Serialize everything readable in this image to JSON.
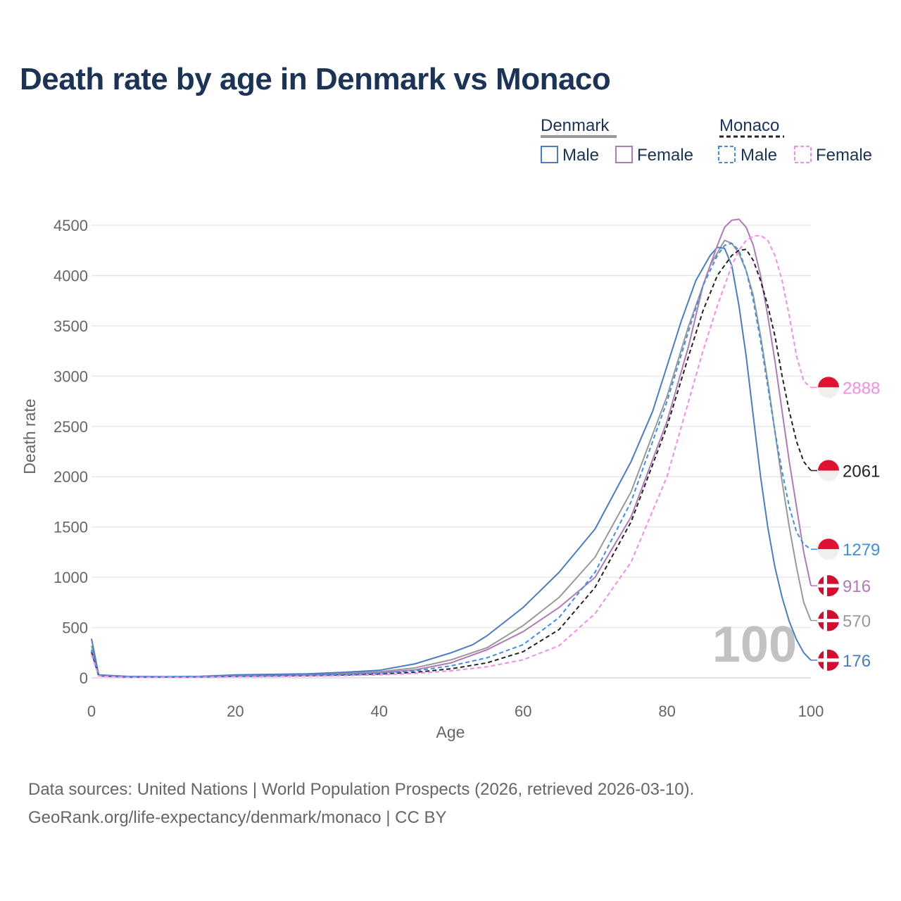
{
  "title": "Death rate by age in Denmark vs Monaco",
  "legend": {
    "groups": [
      {
        "name": "Denmark",
        "sample_color": "#999999",
        "sample_dash": "solid",
        "entries": [
          {
            "label": "Male",
            "color": "#4a7cc4",
            "dash": "solid"
          },
          {
            "label": "Female",
            "color": "#b07ab8",
            "dash": "solid"
          }
        ]
      },
      {
        "name": "Monaco",
        "sample_color": "#222222",
        "sample_dash": "dashed",
        "entries": [
          {
            "label": "Male",
            "color": "#3d8fe6",
            "dash": "dashed"
          },
          {
            "label": "Female",
            "color": "#f58be8",
            "dash": "dashed"
          }
        ]
      }
    ]
  },
  "age_watermark": "100",
  "source": {
    "line1": "Data sources: United Nations | World Population Prospects (2026, retrieved 2026-03-10).",
    "line2": "GeoRank.org/life-expectancy/denmark/monaco | CC BY"
  },
  "chart_data": {
    "type": "line",
    "title": "Death rate by age in Denmark vs Monaco",
    "xlabel": "Age",
    "ylabel": "Death rate",
    "xlim": [
      0,
      100
    ],
    "ylim": [
      0,
      4500
    ],
    "x_ticks": [
      0,
      20,
      40,
      60,
      80,
      100
    ],
    "y_ticks": [
      0,
      500,
      1000,
      1500,
      2000,
      2500,
      3000,
      3500,
      4000,
      4500
    ],
    "grid": true,
    "series": [
      {
        "name": "Denmark Total",
        "country": "Denmark",
        "color": "#999999",
        "dash": "solid",
        "end_label": "570",
        "end_value": 570,
        "flag": "denmark",
        "points": [
          [
            0,
            320
          ],
          [
            1,
            25
          ],
          [
            5,
            12
          ],
          [
            10,
            10
          ],
          [
            15,
            12
          ],
          [
            20,
            25
          ],
          [
            25,
            30
          ],
          [
            30,
            35
          ],
          [
            35,
            45
          ],
          [
            40,
            60
          ],
          [
            45,
            100
          ],
          [
            50,
            180
          ],
          [
            55,
            300
          ],
          [
            60,
            520
          ],
          [
            65,
            800
          ],
          [
            70,
            1200
          ],
          [
            75,
            1850
          ],
          [
            80,
            2800
          ],
          [
            83,
            3500
          ],
          [
            86,
            4100
          ],
          [
            88,
            4350
          ],
          [
            89,
            4320
          ],
          [
            90,
            4220
          ],
          [
            91,
            4050
          ],
          [
            92,
            3800
          ],
          [
            93,
            3400
          ],
          [
            94,
            2950
          ],
          [
            95,
            2450
          ],
          [
            96,
            1950
          ],
          [
            97,
            1500
          ],
          [
            98,
            1100
          ],
          [
            99,
            750
          ],
          [
            100,
            570
          ]
        ]
      },
      {
        "name": "Denmark Male",
        "country": "Denmark",
        "color": "#4a7cc4",
        "dash": "solid",
        "end_label": "176",
        "end_value": 176,
        "flag": "denmark",
        "points": [
          [
            0,
            390
          ],
          [
            1,
            30
          ],
          [
            5,
            15
          ],
          [
            10,
            12
          ],
          [
            15,
            15
          ],
          [
            20,
            30
          ],
          [
            25,
            35
          ],
          [
            30,
            40
          ],
          [
            35,
            55
          ],
          [
            40,
            75
          ],
          [
            45,
            140
          ],
          [
            50,
            250
          ],
          [
            53,
            330
          ],
          [
            55,
            420
          ],
          [
            60,
            700
          ],
          [
            65,
            1050
          ],
          [
            70,
            1480
          ],
          [
            75,
            2150
          ],
          [
            78,
            2650
          ],
          [
            80,
            3100
          ],
          [
            82,
            3550
          ],
          [
            84,
            3950
          ],
          [
            86,
            4200
          ],
          [
            87,
            4280
          ],
          [
            88,
            4270
          ],
          [
            89,
            4100
          ],
          [
            90,
            3700
          ],
          [
            91,
            3200
          ],
          [
            92,
            2600
          ],
          [
            93,
            2000
          ],
          [
            94,
            1500
          ],
          [
            95,
            1100
          ],
          [
            96,
            800
          ],
          [
            97,
            560
          ],
          [
            98,
            380
          ],
          [
            99,
            250
          ],
          [
            100,
            176
          ]
        ]
      },
      {
        "name": "Denmark Female",
        "country": "Denmark",
        "color": "#b07ab8",
        "dash": "solid",
        "end_label": "916",
        "end_value": 916,
        "flag": "denmark",
        "points": [
          [
            0,
            250
          ],
          [
            1,
            20
          ],
          [
            5,
            10
          ],
          [
            10,
            8
          ],
          [
            15,
            10
          ],
          [
            20,
            18
          ],
          [
            25,
            22
          ],
          [
            30,
            28
          ],
          [
            35,
            35
          ],
          [
            40,
            50
          ],
          [
            45,
            80
          ],
          [
            50,
            150
          ],
          [
            55,
            280
          ],
          [
            60,
            460
          ],
          [
            65,
            700
          ],
          [
            70,
            1000
          ],
          [
            75,
            1600
          ],
          [
            80,
            2550
          ],
          [
            83,
            3300
          ],
          [
            85,
            3900
          ],
          [
            87,
            4300
          ],
          [
            88,
            4480
          ],
          [
            89,
            4550
          ],
          [
            90,
            4560
          ],
          [
            91,
            4480
          ],
          [
            92,
            4300
          ],
          [
            93,
            4000
          ],
          [
            94,
            3600
          ],
          [
            95,
            3150
          ],
          [
            96,
            2650
          ],
          [
            97,
            2150
          ],
          [
            98,
            1700
          ],
          [
            99,
            1250
          ],
          [
            100,
            916
          ]
        ]
      },
      {
        "name": "Monaco Total",
        "country": "Monaco",
        "color": "#222222",
        "dash": "dashed",
        "end_label": "2061",
        "end_value": 2061,
        "flag": "monaco",
        "points": [
          [
            0,
            260
          ],
          [
            1,
            20
          ],
          [
            5,
            8
          ],
          [
            10,
            8
          ],
          [
            15,
            10
          ],
          [
            20,
            15
          ],
          [
            25,
            18
          ],
          [
            30,
            22
          ],
          [
            35,
            28
          ],
          [
            40,
            38
          ],
          [
            45,
            55
          ],
          [
            50,
            90
          ],
          [
            55,
            150
          ],
          [
            60,
            260
          ],
          [
            65,
            480
          ],
          [
            70,
            900
          ],
          [
            75,
            1550
          ],
          [
            80,
            2500
          ],
          [
            83,
            3200
          ],
          [
            85,
            3650
          ],
          [
            87,
            4000
          ],
          [
            89,
            4200
          ],
          [
            90,
            4250
          ],
          [
            91,
            4260
          ],
          [
            92,
            4150
          ],
          [
            93,
            3950
          ],
          [
            94,
            3700
          ],
          [
            95,
            3400
          ],
          [
            96,
            3000
          ],
          [
            97,
            2650
          ],
          [
            98,
            2350
          ],
          [
            99,
            2150
          ],
          [
            100,
            2061
          ]
        ]
      },
      {
        "name": "Monaco Male",
        "country": "Monaco",
        "color": "#3d8fe6",
        "dash": "dashed",
        "end_label": "1279",
        "end_value": 1279,
        "flag": "monaco",
        "points": [
          [
            0,
            280
          ],
          [
            1,
            25
          ],
          [
            5,
            10
          ],
          [
            10,
            9
          ],
          [
            15,
            12
          ],
          [
            20,
            18
          ],
          [
            25,
            22
          ],
          [
            30,
            27
          ],
          [
            35,
            33
          ],
          [
            40,
            45
          ],
          [
            45,
            70
          ],
          [
            50,
            120
          ],
          [
            55,
            200
          ],
          [
            60,
            330
          ],
          [
            65,
            600
          ],
          [
            70,
            1050
          ],
          [
            75,
            1750
          ],
          [
            80,
            2750
          ],
          [
            83,
            3450
          ],
          [
            85,
            3900
          ],
          [
            87,
            4200
          ],
          [
            88,
            4300
          ],
          [
            89,
            4320
          ],
          [
            90,
            4250
          ],
          [
            91,
            4050
          ],
          [
            92,
            3750
          ],
          [
            93,
            3350
          ],
          [
            94,
            2900
          ],
          [
            95,
            2450
          ],
          [
            96,
            2050
          ],
          [
            97,
            1700
          ],
          [
            98,
            1450
          ],
          [
            99,
            1330
          ],
          [
            100,
            1279
          ]
        ]
      },
      {
        "name": "Monaco Female",
        "country": "Monaco",
        "color": "#f58be8",
        "dash": "dashed",
        "end_label": "2888",
        "end_value": 2888,
        "flag": "monaco",
        "points": [
          [
            0,
            230
          ],
          [
            1,
            18
          ],
          [
            5,
            7
          ],
          [
            10,
            6
          ],
          [
            15,
            8
          ],
          [
            20,
            12
          ],
          [
            25,
            14
          ],
          [
            30,
            18
          ],
          [
            35,
            22
          ],
          [
            40,
            30
          ],
          [
            45,
            45
          ],
          [
            50,
            70
          ],
          [
            55,
            110
          ],
          [
            60,
            180
          ],
          [
            65,
            320
          ],
          [
            70,
            640
          ],
          [
            75,
            1150
          ],
          [
            80,
            2000
          ],
          [
            83,
            2750
          ],
          [
            85,
            3250
          ],
          [
            87,
            3700
          ],
          [
            89,
            4100
          ],
          [
            90,
            4250
          ],
          [
            91,
            4350
          ],
          [
            92,
            4390
          ],
          [
            93,
            4400
          ],
          [
            94,
            4350
          ],
          [
            95,
            4200
          ],
          [
            96,
            3950
          ],
          [
            97,
            3600
          ],
          [
            98,
            3200
          ],
          [
            99,
            2950
          ],
          [
            100,
            2888
          ]
        ]
      }
    ]
  }
}
